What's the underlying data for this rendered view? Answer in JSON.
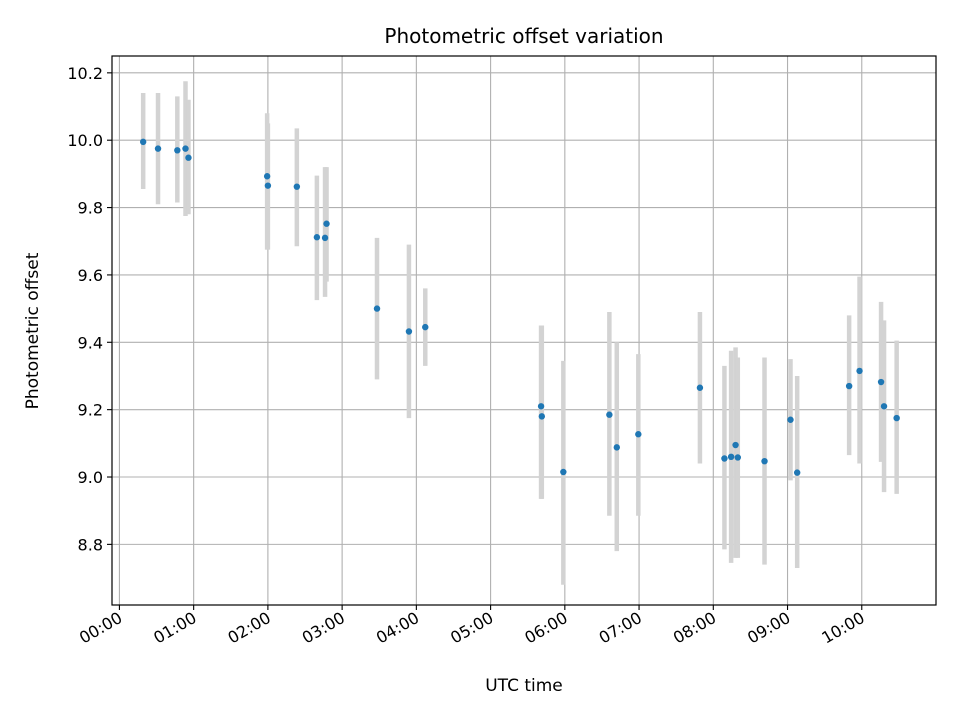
{
  "chart_data": {
    "type": "scatter",
    "title": "Photometric offset variation",
    "xlabel": "UTC time",
    "ylabel": "Photometric offset",
    "x_unit": "hours",
    "xlim": [
      -0.1,
      11.0
    ],
    "ylim": [
      8.62,
      10.25
    ],
    "x_ticks": [
      {
        "value": 0,
        "label": "00:00"
      },
      {
        "value": 1,
        "label": "01:00"
      },
      {
        "value": 2,
        "label": "02:00"
      },
      {
        "value": 3,
        "label": "03:00"
      },
      {
        "value": 4,
        "label": "04:00"
      },
      {
        "value": 5,
        "label": "05:00"
      },
      {
        "value": 6,
        "label": "06:00"
      },
      {
        "value": 7,
        "label": "07:00"
      },
      {
        "value": 8,
        "label": "08:00"
      },
      {
        "value": 9,
        "label": "09:00"
      },
      {
        "value": 10,
        "label": "10:00"
      }
    ],
    "y_ticks": [
      {
        "value": 8.8,
        "label": "8.8"
      },
      {
        "value": 9.0,
        "label": "9.0"
      },
      {
        "value": 9.2,
        "label": "9.2"
      },
      {
        "value": 9.4,
        "label": "9.4"
      },
      {
        "value": 9.6,
        "label": "9.6"
      },
      {
        "value": 9.8,
        "label": "9.8"
      },
      {
        "value": 10.0,
        "label": "10.0"
      },
      {
        "value": 10.2,
        "label": "10.2"
      }
    ],
    "grid": true,
    "marker_color": "#1f77b4",
    "errorbar_color": "#d3d3d3",
    "points": [
      {
        "x": 0.32,
        "y": 9.995,
        "lo": 9.855,
        "hi": 10.14
      },
      {
        "x": 0.52,
        "y": 9.975,
        "lo": 9.81,
        "hi": 10.14
      },
      {
        "x": 0.78,
        "y": 9.97,
        "lo": 9.815,
        "hi": 10.13
      },
      {
        "x": 0.89,
        "y": 9.975,
        "lo": 9.775,
        "hi": 10.175
      },
      {
        "x": 0.93,
        "y": 9.948,
        "lo": 9.78,
        "hi": 10.12
      },
      {
        "x": 1.99,
        "y": 9.893,
        "lo": 9.675,
        "hi": 10.08
      },
      {
        "x": 2.0,
        "y": 9.865,
        "lo": 9.675,
        "hi": 10.05
      },
      {
        "x": 2.39,
        "y": 9.862,
        "lo": 9.685,
        "hi": 10.035
      },
      {
        "x": 2.66,
        "y": 9.712,
        "lo": 9.525,
        "hi": 9.895
      },
      {
        "x": 2.77,
        "y": 9.71,
        "lo": 9.535,
        "hi": 9.92
      },
      {
        "x": 2.79,
        "y": 9.752,
        "lo": 9.58,
        "hi": 9.92
      },
      {
        "x": 3.47,
        "y": 9.5,
        "lo": 9.29,
        "hi": 9.71
      },
      {
        "x": 3.9,
        "y": 9.432,
        "lo": 9.175,
        "hi": 9.69
      },
      {
        "x": 4.12,
        "y": 9.445,
        "lo": 9.33,
        "hi": 9.56
      },
      {
        "x": 5.68,
        "y": 9.21,
        "lo": 8.935,
        "hi": 9.45
      },
      {
        "x": 5.69,
        "y": 9.18,
        "lo": 8.935,
        "hi": 9.45
      },
      {
        "x": 5.98,
        "y": 9.015,
        "lo": 8.68,
        "hi": 9.345
      },
      {
        "x": 6.6,
        "y": 9.185,
        "lo": 8.885,
        "hi": 9.49
      },
      {
        "x": 6.7,
        "y": 9.088,
        "lo": 8.78,
        "hi": 9.4
      },
      {
        "x": 6.99,
        "y": 9.127,
        "lo": 8.885,
        "hi": 9.365
      },
      {
        "x": 7.82,
        "y": 9.265,
        "lo": 9.04,
        "hi": 9.49
      },
      {
        "x": 8.15,
        "y": 9.055,
        "lo": 8.785,
        "hi": 9.33
      },
      {
        "x": 8.24,
        "y": 9.06,
        "lo": 8.745,
        "hi": 9.375
      },
      {
        "x": 8.3,
        "y": 9.095,
        "lo": 8.76,
        "hi": 9.385
      },
      {
        "x": 8.33,
        "y": 9.058,
        "lo": 8.76,
        "hi": 9.355
      },
      {
        "x": 8.69,
        "y": 9.047,
        "lo": 8.74,
        "hi": 9.355
      },
      {
        "x": 9.04,
        "y": 9.17,
        "lo": 8.99,
        "hi": 9.35
      },
      {
        "x": 9.13,
        "y": 9.013,
        "lo": 8.73,
        "hi": 9.3
      },
      {
        "x": 9.83,
        "y": 9.27,
        "lo": 9.065,
        "hi": 9.48
      },
      {
        "x": 9.97,
        "y": 9.315,
        "lo": 9.04,
        "hi": 9.595
      },
      {
        "x": 10.26,
        "y": 9.282,
        "lo": 9.045,
        "hi": 9.52
      },
      {
        "x": 10.3,
        "y": 9.21,
        "lo": 8.955,
        "hi": 9.465
      },
      {
        "x": 10.47,
        "y": 9.175,
        "lo": 8.95,
        "hi": 9.405
      }
    ]
  }
}
